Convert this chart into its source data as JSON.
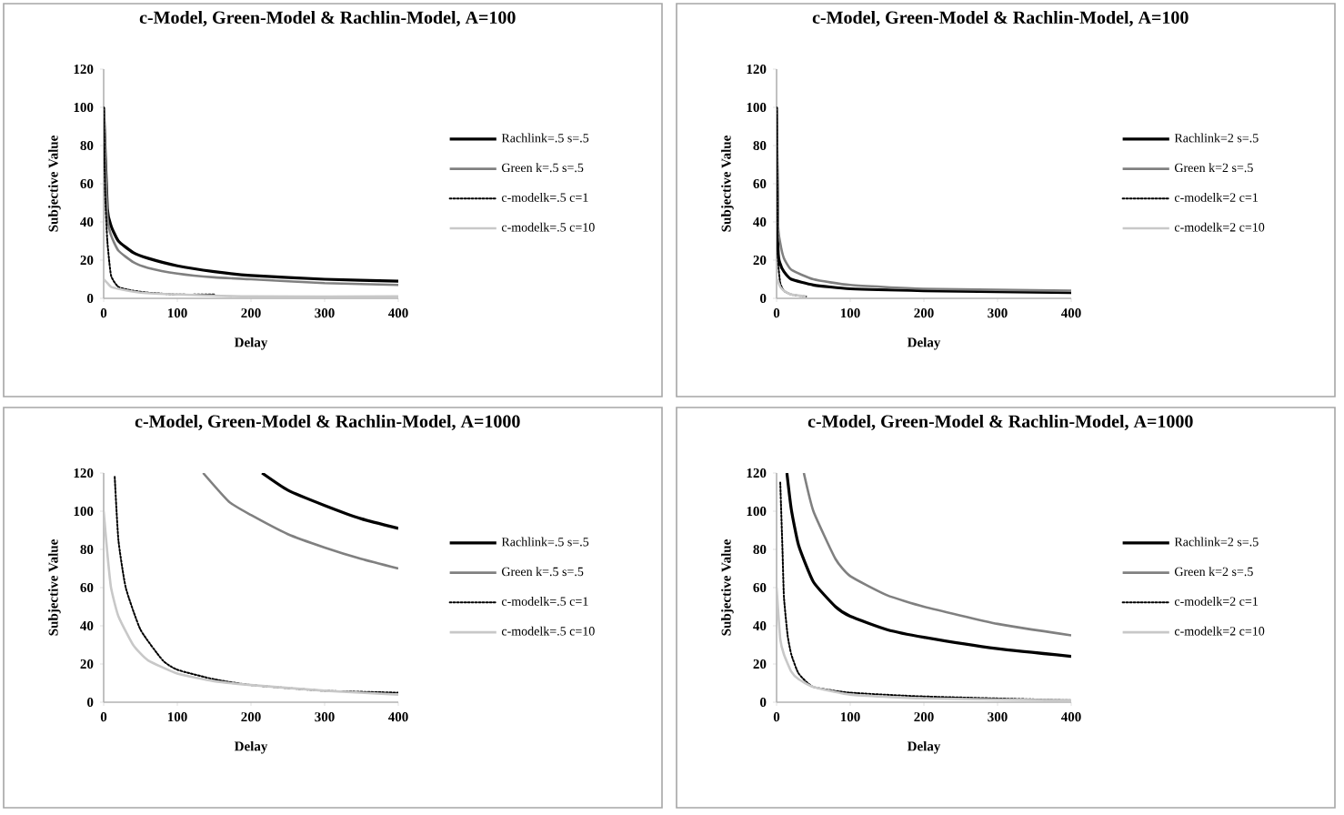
{
  "chart_data": [
    {
      "type": "line",
      "title": "c-Model, Green-Model & Rachlin-Model, A=100",
      "xlabel": "Delay",
      "ylabel": "Subjective Value",
      "xlim": [
        0,
        400
      ],
      "ylim": [
        0,
        120
      ],
      "xticks": [
        0,
        100,
        200,
        300,
        400
      ],
      "yticks": [
        0,
        20,
        40,
        60,
        80,
        100,
        120
      ],
      "legend": "right",
      "series": [
        {
          "name": "Rachlink=.5 s=.5",
          "color": "#000000",
          "line_style": "solid",
          "x": [
            0,
            5,
            10,
            20,
            40,
            60,
            100,
            150,
            200,
            300,
            400
          ],
          "values": [
            100,
            47,
            38,
            30,
            24,
            21,
            17,
            14,
            12,
            10,
            9
          ]
        },
        {
          "name": "Green k=.5 s=.5",
          "color": "#808080",
          "line_style": "solid",
          "x": [
            0,
            5,
            10,
            20,
            40,
            60,
            100,
            150,
            200,
            300,
            400
          ],
          "values": [
            100,
            43,
            33,
            25,
            19,
            16,
            13,
            11,
            10,
            8,
            7
          ]
        },
        {
          "name": "c-modelk=.5 c=1",
          "color": "#000000",
          "line_style": "dotted",
          "x": [
            0,
            2,
            5,
            10,
            20,
            40,
            60,
            100,
            150
          ],
          "values": [
            100,
            55,
            30,
            12,
            6,
            4,
            3,
            2,
            2
          ]
        },
        {
          "name": "c-modelk=.5 c=10",
          "color": "#c8c8c8",
          "line_style": "solid",
          "x": [
            0,
            5,
            10,
            20,
            50,
            100,
            200,
            400
          ],
          "values": [
            10,
            8,
            6,
            5,
            3,
            2,
            1,
            1
          ]
        }
      ]
    },
    {
      "type": "line",
      "title": "c-Model, Green-Model & Rachlin-Model, A=100",
      "xlabel": "Delay",
      "ylabel": "Subjective Value",
      "xlim": [
        0,
        400
      ],
      "ylim": [
        0,
        120
      ],
      "xticks": [
        0,
        100,
        200,
        300,
        400
      ],
      "yticks": [
        0,
        20,
        40,
        60,
        80,
        100,
        120
      ],
      "legend": "right",
      "series": [
        {
          "name": "Rachlink=2 s=.5",
          "color": "#000000",
          "line_style": "solid",
          "x": [
            0,
            2,
            5,
            10,
            20,
            50,
            100,
            200,
            400
          ],
          "values": [
            100,
            26,
            18,
            14,
            10,
            7,
            5,
            4,
            3
          ]
        },
        {
          "name": "Green k=2 s=.5",
          "color": "#808080",
          "line_style": "solid",
          "x": [
            0,
            2,
            5,
            10,
            20,
            50,
            100,
            200,
            400
          ],
          "values": [
            100,
            39,
            29,
            21,
            15,
            10,
            7,
            5,
            4
          ]
        },
        {
          "name": "c-modelk=2 c=1",
          "color": "#000000",
          "line_style": "dotted",
          "x": [
            0,
            1,
            2,
            5,
            10,
            20,
            40
          ],
          "values": [
            100,
            50,
            20,
            8,
            4,
            2,
            1
          ]
        },
        {
          "name": "c-modelk=2 c=10",
          "color": "#c8c8c8",
          "line_style": "solid",
          "x": [
            0,
            2,
            5,
            10,
            20,
            40
          ],
          "values": [
            10,
            9,
            6,
            4,
            2,
            1
          ]
        }
      ]
    },
    {
      "type": "line",
      "title": "c-Model, Green-Model & Rachlin-Model, A=1000",
      "xlabel": "Delay",
      "ylabel": "Subjective Value",
      "xlim": [
        0,
        400
      ],
      "ylim": [
        0,
        120
      ],
      "xticks": [
        0,
        100,
        200,
        300,
        400
      ],
      "yticks": [
        0,
        20,
        40,
        60,
        80,
        100,
        120
      ],
      "legend": "right",
      "series": [
        {
          "name": "Rachlink=.5 s=.5",
          "color": "#000000",
          "line_style": "solid",
          "x": [
            215,
            250,
            300,
            350,
            400
          ],
          "values": [
            120,
            111,
            103,
            96,
            91
          ]
        },
        {
          "name": "Green k=.5 s=.5",
          "color": "#808080",
          "line_style": "solid",
          "x": [
            135,
            170,
            200,
            250,
            300,
            350,
            400
          ],
          "values": [
            120,
            105,
            98,
            88,
            81,
            75,
            70
          ]
        },
        {
          "name": "c-modelk=.5 c=1",
          "color": "#000000",
          "line_style": "dotted",
          "x": [
            15,
            20,
            30,
            50,
            80,
            100,
            150,
            200,
            300,
            400
          ],
          "values": [
            118,
            85,
            60,
            38,
            22,
            17,
            12,
            9,
            6,
            5
          ]
        },
        {
          "name": "c-modelk=.5 c=10",
          "color": "#c8c8c8",
          "line_style": "solid",
          "x": [
            0,
            5,
            10,
            20,
            40,
            60,
            100,
            150,
            200,
            300,
            400
          ],
          "values": [
            100,
            78,
            60,
            45,
            30,
            22,
            15,
            11,
            9,
            6,
            4
          ]
        }
      ]
    },
    {
      "type": "line",
      "title": "c-Model, Green-Model & Rachlin-Model, A=1000",
      "xlabel": "Delay",
      "ylabel": "Subjective Value",
      "xlim": [
        0,
        400
      ],
      "ylim": [
        0,
        120
      ],
      "xticks": [
        0,
        100,
        200,
        300,
        400
      ],
      "yticks": [
        0,
        20,
        40,
        60,
        80,
        100,
        120
      ],
      "legend": "right",
      "series": [
        {
          "name": "Rachlink=2 s=.5",
          "color": "#000000",
          "line_style": "solid",
          "x": [
            14,
            20,
            30,
            50,
            80,
            100,
            150,
            200,
            300,
            400
          ],
          "values": [
            120,
            101,
            82,
            63,
            50,
            45,
            38,
            34,
            28,
            24
          ]
        },
        {
          "name": "Green k=2 s=.5",
          "color": "#808080",
          "line_style": "solid",
          "x": [
            37,
            50,
            80,
            100,
            150,
            200,
            300,
            400
          ],
          "values": [
            120,
            100,
            75,
            66,
            56,
            50,
            41,
            35
          ]
        },
        {
          "name": "c-modelk=2 c=1",
          "color": "#000000",
          "line_style": "dotted",
          "x": [
            5,
            8,
            10,
            15,
            20,
            30,
            50,
            100,
            200,
            400
          ],
          "values": [
            115,
            80,
            55,
            35,
            25,
            15,
            8,
            5,
            3,
            1
          ]
        },
        {
          "name": "c-modelk=2 c=10",
          "color": "#c8c8c8",
          "line_style": "solid",
          "x": [
            0,
            5,
            10,
            20,
            30,
            50,
            100,
            200,
            400
          ],
          "values": [
            60,
            33,
            25,
            16,
            12,
            8,
            4,
            2,
            1
          ]
        }
      ]
    }
  ]
}
